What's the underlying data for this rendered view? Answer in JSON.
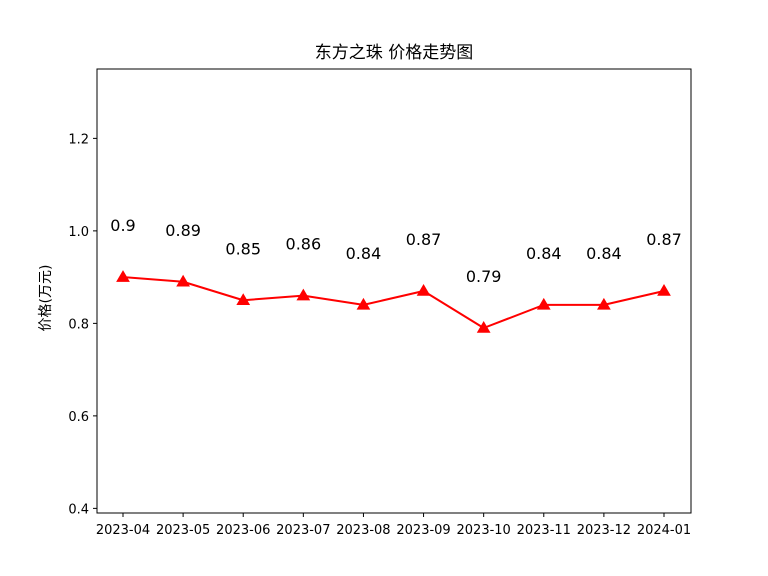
{
  "chart_data": {
    "type": "line",
    "title": "东方之珠 价格走势图",
    "xlabel": "",
    "ylabel": "价格(万元)",
    "categories": [
      "2023-04",
      "2023-05",
      "2023-06",
      "2023-07",
      "2023-08",
      "2023-09",
      "2023-10",
      "2023-11",
      "2023-12",
      "2024-01"
    ],
    "series": [
      {
        "values": [
          0.9,
          0.89,
          0.85,
          0.86,
          0.84,
          0.87,
          0.79,
          0.84,
          0.84,
          0.87
        ],
        "labels": [
          "0.9",
          "0.89",
          "0.85",
          "0.86",
          "0.84",
          "0.87",
          "0.79",
          "0.84",
          "0.84",
          "0.87"
        ],
        "color": "#ff0000",
        "marker": "triangle"
      }
    ],
    "ylim": [
      0.39,
      1.35
    ],
    "yticks": [
      0.4,
      0.6,
      0.8,
      1.0,
      1.2
    ],
    "ytick_labels": [
      "0.4",
      "0.6",
      "0.8",
      "1.0",
      "1.2"
    ],
    "grid": false,
    "legend": "none"
  }
}
